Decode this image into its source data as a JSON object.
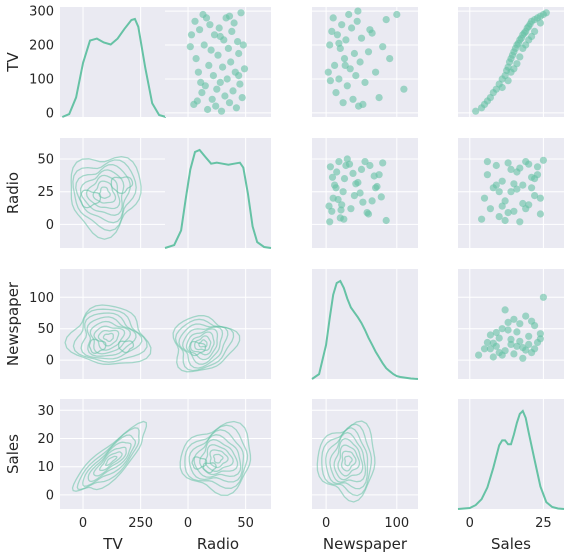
{
  "chart_data": {
    "type": "scatter",
    "kind": "pairplot",
    "variables": [
      "TV",
      "Radio",
      "Newspaper",
      "Sales"
    ],
    "diagonal": "kde",
    "lower": "kde-contour",
    "upper": "scatter",
    "grid": true,
    "colors": {
      "accent": "#66c2a5",
      "panel_bg": "#eaeaf2",
      "grid": "#ffffff",
      "text": "#262626"
    },
    "x_ticks": {
      "TV": [
        "0",
        "250"
      ],
      "Radio": [
        "0",
        "50"
      ],
      "Newspaper": [
        "0",
        "100"
      ],
      "Sales": [
        "0",
        "25"
      ]
    },
    "y_ticks": {
      "TV": [
        "0",
        "100",
        "200",
        "300"
      ],
      "Radio": [
        "0",
        "25",
        "50"
      ],
      "Newspaper": [
        "0",
        "50",
        "100"
      ],
      "Sales": [
        "0",
        "10",
        "20",
        "30"
      ]
    },
    "diag_kde": {
      "TV": {
        "x": [
          -90,
          -60,
          -30,
          0,
          30,
          60,
          90,
          120,
          150,
          180,
          210,
          225,
          240,
          270,
          300,
          330,
          360
        ],
        "y": [
          0,
          0.03,
          0.2,
          0.55,
          0.78,
          0.8,
          0.76,
          0.74,
          0.8,
          0.9,
          0.99,
          1.0,
          0.92,
          0.5,
          0.14,
          0.02,
          0
        ]
      },
      "Radio": {
        "x": [
          -20,
          -12,
          -6,
          -2,
          2,
          6,
          10,
          15,
          20,
          25,
          30,
          35,
          40,
          45,
          48,
          52,
          56,
          60,
          66,
          72
        ],
        "y": [
          0,
          0.03,
          0.18,
          0.5,
          0.8,
          0.98,
          1.0,
          0.93,
          0.86,
          0.87,
          0.86,
          0.85,
          0.86,
          0.87,
          0.82,
          0.55,
          0.22,
          0.06,
          0.01,
          0
        ]
      },
      "Newspaper": {
        "x": [
          -20,
          -10,
          0,
          5,
          10,
          15,
          20,
          25,
          30,
          35,
          40,
          45,
          50,
          55,
          60,
          65,
          70,
          75,
          80,
          85,
          90,
          95,
          100,
          105,
          110,
          115,
          120,
          125,
          130
        ],
        "y": [
          0,
          0.05,
          0.35,
          0.62,
          0.86,
          0.98,
          1.0,
          0.93,
          0.82,
          0.73,
          0.68,
          0.63,
          0.57,
          0.5,
          0.42,
          0.35,
          0.28,
          0.22,
          0.16,
          0.11,
          0.08,
          0.05,
          0.03,
          0.02,
          0.015,
          0.01,
          0.005,
          0.002,
          0
        ]
      },
      "Sales": {
        "x": [
          -4,
          0,
          2,
          4,
          6,
          8,
          10,
          11,
          12,
          13,
          14,
          15,
          16,
          17,
          18,
          19,
          20,
          22,
          24,
          26,
          28,
          30,
          32
        ],
        "y": [
          0,
          0.01,
          0.04,
          0.1,
          0.22,
          0.42,
          0.65,
          0.7,
          0.7,
          0.66,
          0.66,
          0.76,
          0.88,
          0.97,
          1.0,
          0.93,
          0.78,
          0.5,
          0.23,
          0.07,
          0.02,
          0.005,
          0
        ]
      }
    },
    "scatter_tv_radio": [
      [
        3,
        230
      ],
      [
        5,
        25
      ],
      [
        7,
        160
      ],
      [
        9,
        120
      ],
      [
        10,
        245
      ],
      [
        12,
        60
      ],
      [
        13,
        290
      ],
      [
        14,
        200
      ],
      [
        15,
        80
      ],
      [
        16,
        280
      ],
      [
        17,
        10
      ],
      [
        18,
        140
      ],
      [
        19,
        260
      ],
      [
        20,
        185
      ],
      [
        21,
        40
      ],
      [
        22,
        110
      ],
      [
        23,
        230
      ],
      [
        24,
        20
      ],
      [
        25,
        70
      ],
      [
        26,
        170
      ],
      [
        27,
        250
      ],
      [
        28,
        90
      ],
      [
        29,
        5
      ],
      [
        30,
        135
      ],
      [
        31,
        215
      ],
      [
        32,
        50
      ],
      [
        33,
        280
      ],
      [
        34,
        100
      ],
      [
        35,
        190
      ],
      [
        36,
        30
      ],
      [
        37,
        150
      ],
      [
        38,
        240
      ],
      [
        39,
        65
      ],
      [
        40,
        265
      ],
      [
        41,
        120
      ],
      [
        42,
        15
      ],
      [
        43,
        210
      ],
      [
        44,
        175
      ],
      [
        45,
        85
      ],
      [
        46,
        295
      ],
      [
        47,
        45
      ],
      [
        48,
        200
      ],
      [
        49,
        130
      ],
      [
        6,
        270
      ],
      [
        11,
        90
      ],
      [
        2,
        195
      ],
      [
        8,
        35
      ],
      [
        28,
        225
      ],
      [
        36,
        285
      ],
      [
        44,
        110
      ]
    ],
    "scatter_tv_newspaper": [
      [
        5,
        200
      ],
      [
        8,
        240
      ],
      [
        10,
        280
      ],
      [
        12,
        140
      ],
      [
        14,
        60
      ],
      [
        16,
        230
      ],
      [
        18,
        100
      ],
      [
        20,
        190
      ],
      [
        22,
        260
      ],
      [
        24,
        30
      ],
      [
        26,
        160
      ],
      [
        28,
        215
      ],
      [
        30,
        80
      ],
      [
        32,
        290
      ],
      [
        34,
        130
      ],
      [
        36,
        250
      ],
      [
        38,
        40
      ],
      [
        40,
        175
      ],
      [
        42,
        110
      ],
      [
        44,
        270
      ],
      [
        46,
        20
      ],
      [
        48,
        150
      ],
      [
        50,
        220
      ],
      [
        55,
        90
      ],
      [
        60,
        180
      ],
      [
        65,
        235
      ],
      [
        70,
        120
      ],
      [
        75,
        45
      ],
      [
        80,
        195
      ],
      [
        85,
        275
      ],
      [
        90,
        160
      ],
      [
        100,
        290
      ],
      [
        110,
        70
      ],
      [
        6,
        95
      ],
      [
        18,
        205
      ],
      [
        27,
        140
      ],
      [
        45,
        300
      ],
      [
        52,
        25
      ],
      [
        62,
        245
      ],
      [
        3,
        120
      ]
    ],
    "scatter_tv_sales": [
      [
        2,
        5
      ],
      [
        4,
        15
      ],
      [
        5,
        25
      ],
      [
        6,
        35
      ],
      [
        7,
        45
      ],
      [
        8,
        60
      ],
      [
        9,
        70
      ],
      [
        10,
        85
      ],
      [
        11,
        100
      ],
      [
        12,
        110
      ],
      [
        12.5,
        125
      ],
      [
        13,
        135
      ],
      [
        13.5,
        150
      ],
      [
        14,
        160
      ],
      [
        14.5,
        170
      ],
      [
        15,
        180
      ],
      [
        15.5,
        190
      ],
      [
        16,
        200
      ],
      [
        16.5,
        205
      ],
      [
        17,
        215
      ],
      [
        17.5,
        220
      ],
      [
        18,
        230
      ],
      [
        18.5,
        235
      ],
      [
        19,
        240
      ],
      [
        19.5,
        250
      ],
      [
        20,
        255
      ],
      [
        20.5,
        262
      ],
      [
        21,
        270
      ],
      [
        22,
        275
      ],
      [
        23,
        280
      ],
      [
        24,
        285
      ],
      [
        25,
        290
      ],
      [
        11,
        75
      ],
      [
        14,
        120
      ],
      [
        16,
        145
      ],
      [
        18,
        190
      ],
      [
        20,
        215
      ],
      [
        22,
        240
      ],
      [
        24,
        265
      ],
      [
        26,
        295
      ],
      [
        13,
        95
      ],
      [
        15,
        130
      ],
      [
        17,
        165
      ],
      [
        19,
        200
      ],
      [
        21,
        225
      ]
    ],
    "scatter_radio_newspaper": [
      [
        5,
        2
      ],
      [
        8,
        10
      ],
      [
        10,
        20
      ],
      [
        12,
        30
      ],
      [
        15,
        40
      ],
      [
        18,
        48
      ],
      [
        20,
        5
      ],
      [
        22,
        15
      ],
      [
        24,
        25
      ],
      [
        26,
        35
      ],
      [
        28,
        45
      ],
      [
        30,
        50
      ],
      [
        35,
        12
      ],
      [
        40,
        22
      ],
      [
        45,
        32
      ],
      [
        50,
        42
      ],
      [
        55,
        48
      ],
      [
        60,
        8
      ],
      [
        65,
        18
      ],
      [
        70,
        28
      ],
      [
        75,
        38
      ],
      [
        80,
        47
      ],
      [
        85,
        3
      ],
      [
        6,
        44
      ],
      [
        9,
        36
      ],
      [
        14,
        28
      ],
      [
        17,
        19
      ],
      [
        21,
        11
      ],
      [
        25,
        4
      ],
      [
        33,
        46
      ],
      [
        38,
        39
      ],
      [
        42,
        31
      ],
      [
        48,
        24
      ],
      [
        52,
        17
      ],
      [
        58,
        9
      ],
      [
        62,
        45
      ],
      [
        68,
        37
      ],
      [
        72,
        29
      ],
      [
        78,
        21
      ],
      [
        4,
        14
      ]
    ],
    "scatter_radio_sales": [
      [
        4,
        4
      ],
      [
        5,
        20
      ],
      [
        6,
        38
      ],
      [
        7,
        12
      ],
      [
        8,
        28
      ],
      [
        9,
        45
      ],
      [
        10,
        6
      ],
      [
        11,
        33
      ],
      [
        12,
        18
      ],
      [
        13,
        47
      ],
      [
        14,
        25
      ],
      [
        15,
        10
      ],
      [
        16,
        40
      ],
      [
        17,
        2
      ],
      [
        18,
        30
      ],
      [
        19,
        48
      ],
      [
        20,
        15
      ],
      [
        21,
        36
      ],
      [
        22,
        22
      ],
      [
        23,
        44
      ],
      [
        24,
        8
      ],
      [
        25,
        49
      ],
      [
        12,
        3
      ],
      [
        14,
        42
      ],
      [
        16,
        27
      ],
      [
        18,
        16
      ],
      [
        20,
        46
      ],
      [
        22,
        35
      ],
      [
        24,
        20
      ],
      [
        10,
        25
      ],
      [
        13,
        9
      ],
      [
        15,
        31
      ],
      [
        17,
        43
      ],
      [
        19,
        12
      ],
      [
        21,
        28
      ],
      [
        23,
        38
      ],
      [
        6,
        48
      ],
      [
        9,
        30
      ],
      [
        11,
        14
      ]
    ],
    "scatter_newspaper_sales": [
      [
        3,
        8
      ],
      [
        5,
        18
      ],
      [
        6,
        28
      ],
      [
        7,
        40
      ],
      [
        8,
        5
      ],
      [
        9,
        22
      ],
      [
        10,
        35
      ],
      [
        11,
        50
      ],
      [
        12,
        15
      ],
      [
        13,
        60
      ],
      [
        14,
        25
      ],
      [
        15,
        10
      ],
      [
        16,
        45
      ],
      [
        17,
        30
      ],
      [
        18,
        20
      ],
      [
        19,
        70
      ],
      [
        20,
        38
      ],
      [
        21,
        12
      ],
      [
        22,
        55
      ],
      [
        23,
        28
      ],
      [
        24,
        42
      ],
      [
        25,
        100
      ],
      [
        12,
        80
      ],
      [
        15,
        65
      ],
      [
        18,
        3
      ],
      [
        20,
        25
      ],
      [
        22,
        18
      ],
      [
        10,
        12
      ],
      [
        14,
        33
      ],
      [
        16,
        22
      ],
      [
        11,
        8
      ],
      [
        13,
        48
      ],
      [
        17,
        58
      ],
      [
        19,
        16
      ],
      [
        8,
        27
      ],
      [
        9,
        44
      ],
      [
        7,
        18
      ],
      [
        24,
        34
      ],
      [
        21,
        62
      ]
    ]
  }
}
